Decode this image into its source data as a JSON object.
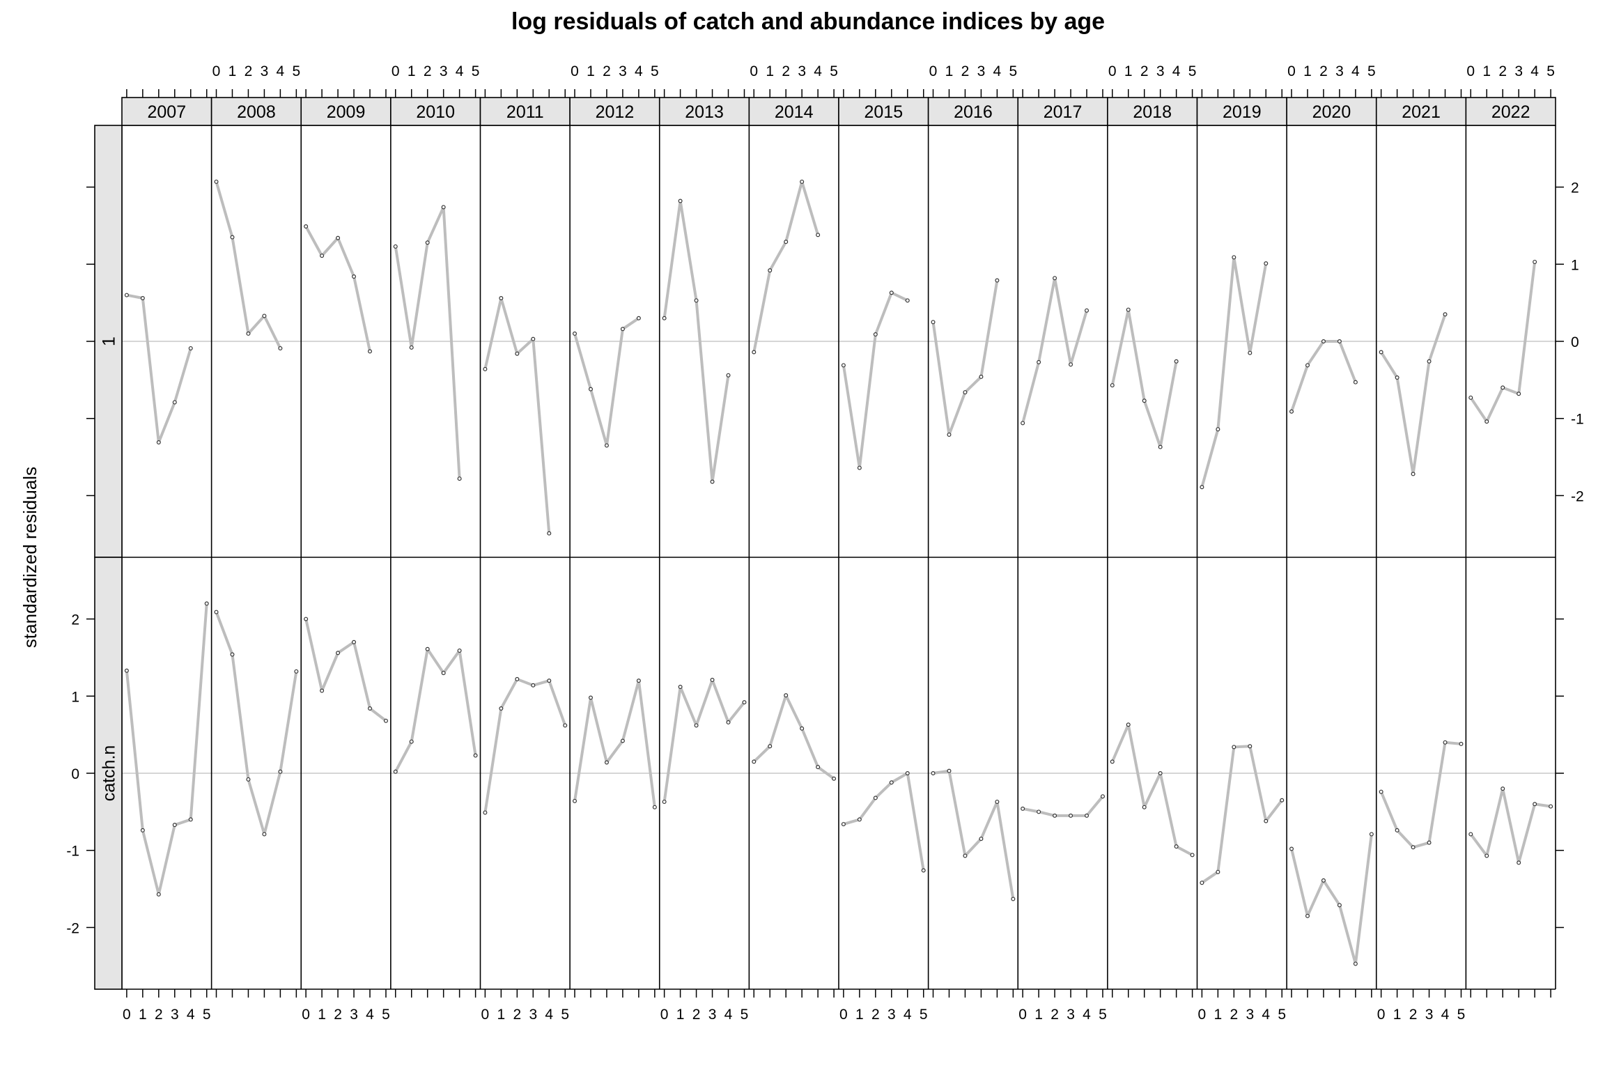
{
  "chart_data": {
    "type": "line",
    "title": "log residuals of catch and abundance indices by age",
    "ylabel": "standardized residuals",
    "x_ticks": [
      "0",
      "1",
      "2",
      "3",
      "4",
      "5"
    ],
    "y_ticks": [
      "-2",
      "-1",
      "0",
      "1",
      "2"
    ],
    "ylim": [
      -2.8,
      2.8
    ],
    "xlim": [
      -0.3,
      5.3
    ],
    "reference_line": 0,
    "line_color": "#bdbdbd",
    "strip_color": "#e5e5e5",
    "years": [
      "2007",
      "2008",
      "2009",
      "2010",
      "2011",
      "2012",
      "2013",
      "2014",
      "2015",
      "2016",
      "2017",
      "2018",
      "2019",
      "2020",
      "2021",
      "2022"
    ],
    "ages": [
      0,
      1,
      2,
      3,
      4,
      5
    ],
    "panels": [
      {
        "row_label": "1",
        "series": [
          {
            "year": "2007",
            "values": [
              0.6,
              0.56,
              -1.31,
              -0.79,
              -0.09,
              null
            ]
          },
          {
            "year": "2008",
            "values": [
              2.07,
              1.35,
              0.1,
              0.33,
              -0.09,
              null
            ]
          },
          {
            "year": "2009",
            "values": [
              1.49,
              1.11,
              1.34,
              0.84,
              -0.13,
              null
            ]
          },
          {
            "year": "2010",
            "values": [
              1.23,
              -0.08,
              1.28,
              1.74,
              -1.78,
              null
            ]
          },
          {
            "year": "2011",
            "values": [
              -0.36,
              0.56,
              -0.16,
              0.03,
              -2.49,
              null
            ]
          },
          {
            "year": "2012",
            "values": [
              0.1,
              -0.62,
              -1.35,
              0.16,
              0.3,
              null
            ]
          },
          {
            "year": "2013",
            "values": [
              0.3,
              1.82,
              0.53,
              -1.82,
              -0.44,
              null
            ]
          },
          {
            "year": "2014",
            "values": [
              -0.14,
              0.92,
              1.29,
              2.07,
              1.38,
              null
            ]
          },
          {
            "year": "2015",
            "values": [
              -0.31,
              -1.64,
              0.09,
              0.63,
              0.53,
              null
            ]
          },
          {
            "year": "2016",
            "values": [
              0.25,
              -1.21,
              -0.66,
              -0.46,
              0.79,
              null
            ]
          },
          {
            "year": "2017",
            "values": [
              -1.06,
              -0.27,
              0.82,
              -0.3,
              0.4,
              null
            ]
          },
          {
            "year": "2018",
            "values": [
              -0.57,
              0.41,
              -0.77,
              -1.37,
              -0.26,
              null
            ]
          },
          {
            "year": "2019",
            "values": [
              -1.89,
              -1.14,
              1.09,
              -0.15,
              1.01,
              null
            ]
          },
          {
            "year": "2020",
            "values": [
              -0.91,
              -0.31,
              0.0,
              0.0,
              -0.53,
              null
            ]
          },
          {
            "year": "2021",
            "values": [
              -0.14,
              -0.47,
              -1.72,
              -0.26,
              0.35,
              null
            ]
          },
          {
            "year": "2022",
            "values": [
              -0.73,
              -1.04,
              -0.6,
              -0.68,
              1.03,
              null
            ]
          }
        ]
      },
      {
        "row_label": "catch.n",
        "series": [
          {
            "year": "2007",
            "values": [
              1.33,
              -0.74,
              -1.57,
              -0.67,
              -0.6,
              2.2
            ]
          },
          {
            "year": "2008",
            "values": [
              2.09,
              1.54,
              -0.08,
              -0.79,
              0.02,
              1.32
            ]
          },
          {
            "year": "2009",
            "values": [
              2.0,
              1.07,
              1.56,
              1.7,
              0.84,
              0.68
            ]
          },
          {
            "year": "2010",
            "values": [
              0.02,
              0.41,
              1.61,
              1.3,
              1.59,
              0.23
            ]
          },
          {
            "year": "2011",
            "values": [
              -0.51,
              0.84,
              1.22,
              1.14,
              1.2,
              0.62
            ]
          },
          {
            "year": "2012",
            "values": [
              -0.36,
              0.98,
              0.14,
              0.42,
              1.2,
              -0.44
            ]
          },
          {
            "year": "2013",
            "values": [
              -0.37,
              1.12,
              0.62,
              1.21,
              0.66,
              0.92
            ]
          },
          {
            "year": "2014",
            "values": [
              0.15,
              0.35,
              1.01,
              0.58,
              0.08,
              -0.07
            ]
          },
          {
            "year": "2015",
            "values": [
              -0.66,
              -0.6,
              -0.32,
              -0.12,
              0.0,
              -1.26
            ]
          },
          {
            "year": "2016",
            "values": [
              0.0,
              0.03,
              -1.07,
              -0.85,
              -0.37,
              -1.63
            ]
          },
          {
            "year": "2017",
            "values": [
              -0.46,
              -0.5,
              -0.55,
              -0.55,
              -0.55,
              -0.3
            ]
          },
          {
            "year": "2018",
            "values": [
              0.15,
              0.63,
              -0.44,
              0.0,
              -0.95,
              -1.06
            ]
          },
          {
            "year": "2019",
            "values": [
              -1.42,
              -1.28,
              0.34,
              0.35,
              -0.62,
              -0.35
            ]
          },
          {
            "year": "2020",
            "values": [
              -0.98,
              -1.85,
              -1.39,
              -1.71,
              -2.47,
              -0.79
            ]
          },
          {
            "year": "2021",
            "values": [
              -0.24,
              -0.74,
              -0.96,
              -0.9,
              0.4,
              0.38
            ]
          },
          {
            "year": "2022",
            "values": [
              -0.79,
              -1.07,
              -0.2,
              -1.16,
              -0.4,
              -0.43
            ]
          }
        ]
      }
    ]
  }
}
